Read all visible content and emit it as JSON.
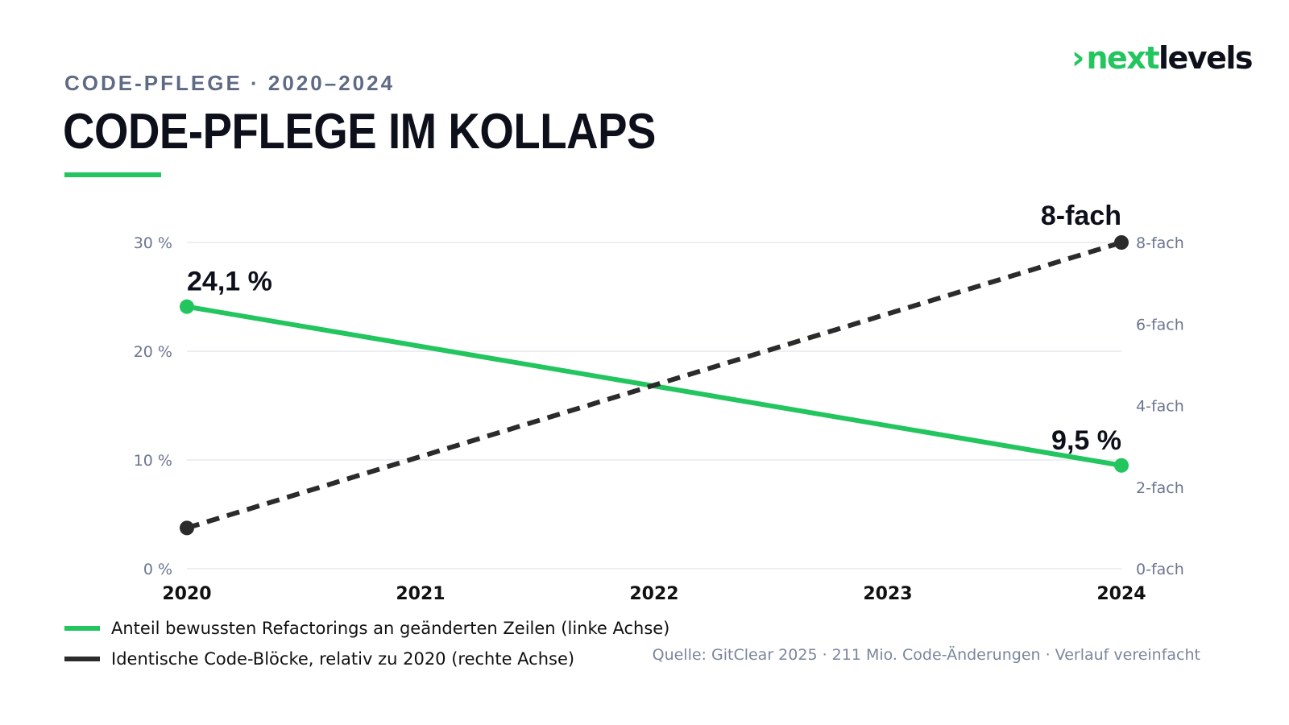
{
  "header": {
    "kicker": "CODE-PFLEGE · 2020–2024",
    "title": "CODE-PFLEGE IM KOLLAPS"
  },
  "logo": {
    "arrow": "›",
    "next": "next",
    "levels": "levels"
  },
  "colors": {
    "accent": "#22c55e",
    "dark": "#2b2b2b",
    "grid": "#e5e8ee",
    "axis_text": "#6b7591"
  },
  "chart_data": {
    "type": "line",
    "x": [
      "2020",
      "2021",
      "2022",
      "2023",
      "2024"
    ],
    "y_left": {
      "ticks": [
        "0 %",
        "10 %",
        "20 %",
        "30 %"
      ],
      "tick_values": [
        0,
        10,
        20,
        30
      ],
      "ylim": [
        0,
        30
      ]
    },
    "y_right": {
      "ticks": [
        "0-fach",
        "2-fach",
        "4-fach",
        "6-fach",
        "8-fach"
      ],
      "tick_values": [
        0,
        2,
        4,
        6,
        8
      ],
      "ylim": [
        0,
        8
      ]
    },
    "series": [
      {
        "name": "Anteil bewussten Refactorings an geänderten Zeilen (linke Achse)",
        "axis": "left",
        "style": "solid",
        "color": "#22c55e",
        "x": [
          "2020",
          "2024"
        ],
        "values": [
          24.1,
          9.5
        ]
      },
      {
        "name": "Identische Code-Blöcke, relativ zu 2020 (rechte Achse)",
        "axis": "right",
        "style": "dashed",
        "color": "#2b2b2b",
        "x": [
          "2020",
          "2024"
        ],
        "values": [
          1,
          8
        ]
      }
    ],
    "annotations": [
      "24,1 %",
      "9,5 %",
      "8-fach"
    ],
    "grid": true,
    "legend": "bottom-left"
  },
  "footer": {
    "source": "Quelle: GitClear 2025 · 211 Mio. Code-Änderungen · Verlauf vereinfacht"
  }
}
